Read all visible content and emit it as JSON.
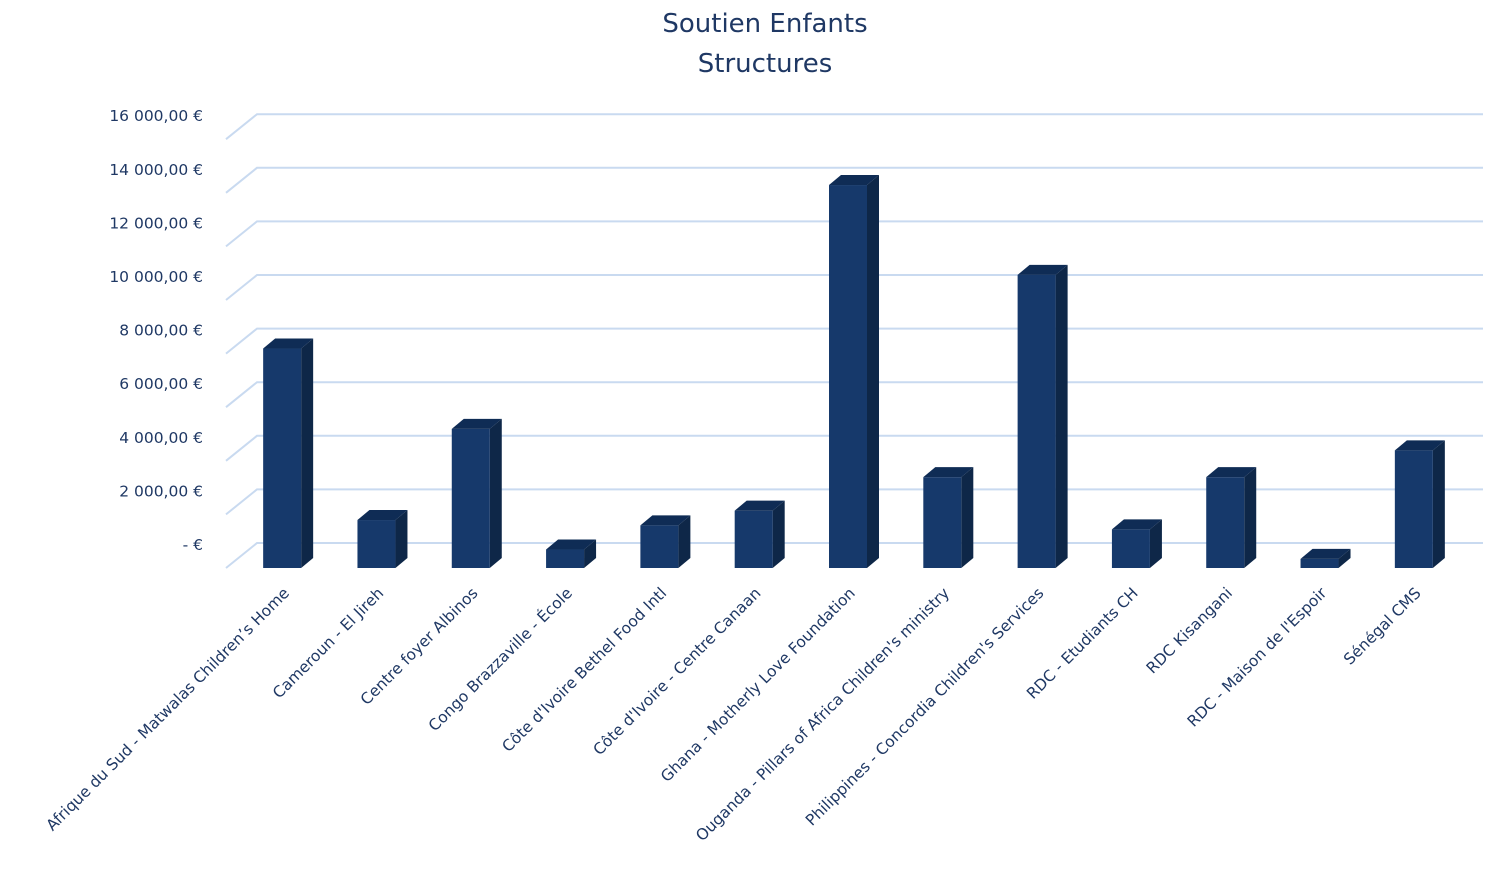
{
  "chart_data": {
    "type": "bar",
    "title": [
      "Soutien Enfants",
      "Structures"
    ],
    "xlabel": "",
    "ylabel": "",
    "categories": [
      "Afrique du Sud - Matwalas Children’s Home",
      "Cameroun - El Jireh",
      "Centre foyer Albinos",
      "Congo Brazzaville - École",
      "Côte d'Ivoire Bethel Food Intl",
      "Côte d'Ivoire - Centre Canaan",
      "Ghana - Motherly Love Foundation",
      "Ouganda - Pillars of Africa Children's ministry",
      "Philippines - Concordia Children's Services",
      "RDC - Etudiants CH",
      "RDC Kisangani",
      "RDC - Maison de l'Espoir",
      "Sénégal CMS"
    ],
    "values": [
      8600,
      2200,
      5600,
      1100,
      2000,
      2550,
      14700,
      3800,
      11350,
      1850,
      3800,
      750,
      4800
    ],
    "ylim": [
      0,
      16000
    ],
    "yticks": [
      0,
      2000,
      4000,
      6000,
      8000,
      10000,
      12000,
      14000,
      16000
    ],
    "ytick_labels": [
      "-  €",
      "2 000,00 €",
      "4 000,00 €",
      "6 000,00 €",
      "8 000,00 €",
      "10 000,00 €",
      "12 000,00 €",
      "14 000,00 €",
      "16 000,00 €"
    ],
    "grid": true,
    "legend": "none",
    "style": "3d-column",
    "colors": {
      "bar_front": "#16396b",
      "bar_side": "#0e2748",
      "bar_top": "#0f2c55",
      "grid": "#c9daf0",
      "text": "#1f3864"
    }
  }
}
